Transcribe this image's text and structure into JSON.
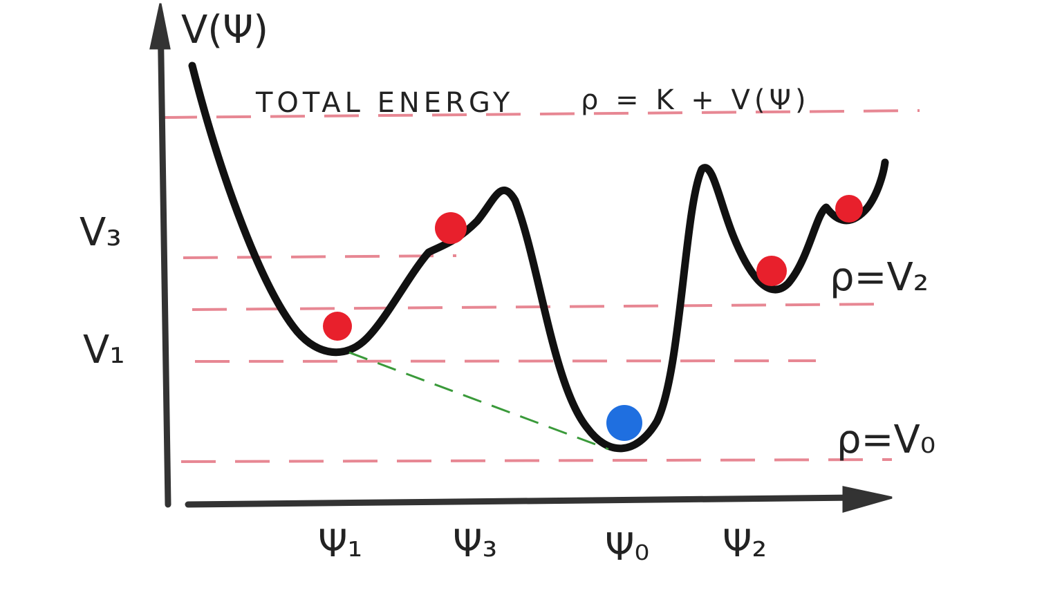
{
  "axis": {
    "y_label": "V(Ψ)"
  },
  "header": {
    "title": "TOTAL ENERGY",
    "equation": "ρ = K + V(Ψ)"
  },
  "levels": {
    "v3": "V₃",
    "v1": "V₁",
    "v2": "ρ=V₂",
    "v0": "ρ=V₀"
  },
  "x_labels": [
    "Ψ₁",
    "Ψ₃",
    "Ψ₀",
    "Ψ₂"
  ]
}
